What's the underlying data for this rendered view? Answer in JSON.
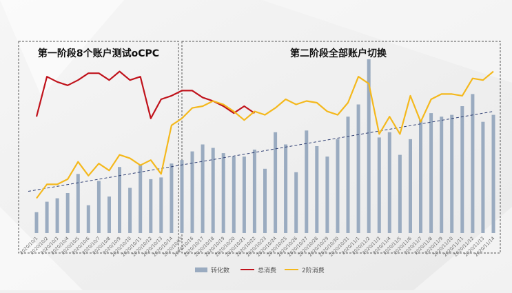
{
  "colors": {
    "bar": "#9aabc0",
    "total_spend": "#c0121b",
    "stage2_spend": "#f4b81c",
    "trend": "#2f3f73",
    "box_border": "#555555"
  },
  "phase_labels": {
    "phase1": "第一阶段8个账户测试oCPC",
    "phase2": "第二阶段全部账户切换"
  },
  "chart_data": {
    "type": "bar",
    "title": "",
    "xlabel": "",
    "ylabel": "",
    "grid": false,
    "legend_position": "bottom-center",
    "categories": [
      "2020/10/1",
      "2020/10/2",
      "2020/10/3",
      "2020/10/4",
      "2020/10/5",
      "2020/10/6",
      "2020/10/7",
      "2020/10/8",
      "2020/10/9",
      "2020/10/10",
      "2020/10/11",
      "2020/10/12",
      "2020/10/13",
      "2020/10/14",
      "2020/10/15",
      "2020/10/16",
      "2020/10/17",
      "2020/10/18",
      "2020/10/19",
      "2020/10/20",
      "2020/10/21",
      "2020/10/22",
      "2020/10/23",
      "2020/10/24",
      "2020/10/25",
      "2020/10/26",
      "2020/10/27",
      "2020/10/28",
      "2020/10/29",
      "2020/10/30",
      "2020/10/31",
      "2020/11/1",
      "2020/11/2",
      "2020/11/3",
      "2020/11/4",
      "2020/11/5",
      "2020/11/6",
      "2020/11/7",
      "2020/11/8",
      "2020/11/9",
      "2020/11/10",
      "2020/11/11",
      "2020/11/12",
      "2020/11/13",
      "2020/11/14"
    ],
    "tick_labels": [
      "2020/10/1",
      "2020/10/2",
      "2020/10/3",
      "2020/10/4",
      "2020/10/5",
      "2020/10/6",
      "2020/10/7",
      "2020/10/8",
      "2020/10/9",
      "2020/10/10",
      "2020/10/11",
      "2020/10/12",
      "2020/10/13",
      "2020/10/14",
      "2020/10/15",
      "2020/10/16",
      "2020/10/17",
      "2020/10/18",
      "2020/10/19",
      "2020/10/20",
      "2020/10/21",
      "2020/10/22",
      "2020/10/23",
      "2020/10/24",
      "2020/10/25",
      "2020/10/26",
      "2020/10/27",
      "2020/10/28",
      "2020/10/29",
      "2020/10/30",
      "2020/10/31",
      "2020/11/1",
      "2020/11/2",
      "2020/11/3",
      "2020/11/4",
      "2020/11/5",
      "2020/11/6",
      "2020/11/7",
      "2020/11/8",
      "2020/11/9",
      "2020/11/10",
      "2020/11/11",
      "2020/11/12",
      "2020/11/13",
      "2020/11/14"
    ],
    "ylim": [
      0,
      100
    ],
    "series": [
      {
        "name": "转化数",
        "kind": "bar",
        "color": "#9aabc0",
        "values": [
          12,
          18,
          20,
          23,
          34,
          16,
          30,
          21,
          38,
          26,
          39,
          31,
          32,
          40,
          42,
          47,
          51,
          49,
          46,
          44,
          44,
          48,
          37,
          58,
          51,
          35,
          59,
          50,
          44,
          54,
          67,
          74,
          100,
          55,
          58,
          45,
          54,
          65,
          69,
          67,
          68,
          73,
          80,
          64,
          68
        ]
      },
      {
        "name": "总消费",
        "kind": "line",
        "color": "#c0121b",
        "values": [
          67,
          90,
          87,
          85,
          88,
          92,
          92,
          88,
          93,
          88,
          90,
          66,
          77,
          79,
          82,
          82,
          78,
          76,
          73,
          69,
          73,
          69,
          null,
          null,
          null,
          null,
          null,
          null,
          null,
          null,
          null,
          null,
          null,
          null,
          null,
          null,
          null,
          null,
          null,
          null,
          null,
          null,
          null,
          null,
          null
        ]
      },
      {
        "name": "2阶消费",
        "kind": "line",
        "color": "#f4b81c",
        "values": [
          20,
          28,
          28,
          31,
          41,
          33,
          40,
          36,
          45,
          43,
          39,
          42,
          34,
          62,
          66,
          72,
          73,
          76,
          74,
          70,
          65,
          70,
          68,
          72,
          77,
          74,
          76,
          75,
          70,
          68,
          75,
          90,
          86,
          57,
          67,
          57,
          79,
          64,
          77,
          80,
          80,
          79,
          89,
          88,
          93
        ]
      }
    ],
    "trend_line": {
      "style": "dashed",
      "color": "#2f3f73",
      "start": 24,
      "end": 70
    }
  }
}
